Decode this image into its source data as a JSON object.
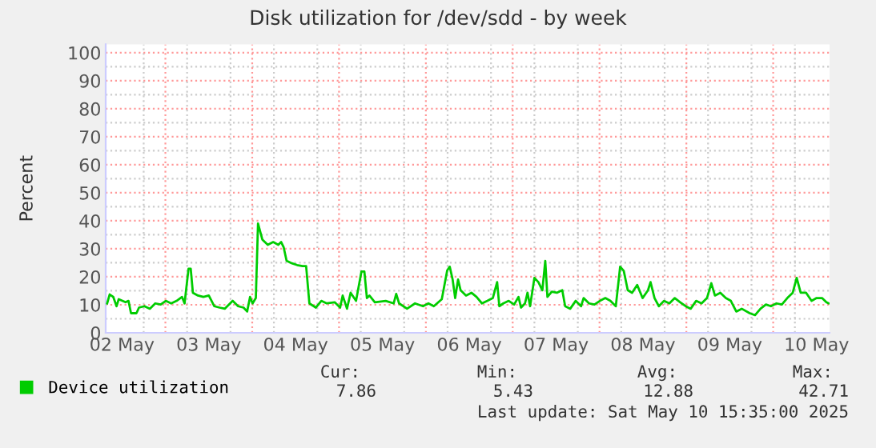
{
  "chart_data": {
    "type": "line",
    "title": "Disk utilization for /dev/sdd - by week",
    "ylabel": "Percent",
    "x": [
      "2025-05-02T07:54",
      "2025-05-02T08:36",
      "2025-05-02T09:36",
      "2025-05-02T10:30",
      "2025-05-02T11:06",
      "2025-05-02T13:00",
      "2025-05-02T13:48",
      "2025-05-02T14:30",
      "2025-05-02T16:00",
      "2025-05-02T16:42",
      "2025-05-02T18:12",
      "2025-05-02T19:42",
      "2025-05-02T21:12",
      "2025-05-02T22:42",
      "2025-05-03T00:06",
      "2025-05-03T01:36",
      "2025-05-03T03:06",
      "2025-05-03T04:36",
      "2025-05-03T05:18",
      "2025-05-03T06:24",
      "2025-05-03T07:00",
      "2025-05-03T07:36",
      "2025-05-03T09:00",
      "2025-05-03T10:30",
      "2025-05-03T12:00",
      "2025-05-03T13:30",
      "2025-05-03T15:00",
      "2025-05-03T16:24",
      "2025-05-03T18:36",
      "2025-05-03T20:06",
      "2025-05-03T21:36",
      "2025-05-03T22:36",
      "2025-05-03T23:24",
      "2025-05-04T00:06",
      "2025-05-04T01:00",
      "2025-05-04T01:36",
      "2025-05-04T02:48",
      "2025-05-04T04:18",
      "2025-05-04T05:48",
      "2025-05-04T07:12",
      "2025-05-04T08:00",
      "2025-05-04T08:42",
      "2025-05-04T09:30",
      "2025-05-04T11:00",
      "2025-05-04T12:24",
      "2025-05-04T13:54",
      "2025-05-04T14:54",
      "2025-05-04T15:48",
      "2025-05-04T17:36",
      "2025-05-04T19:06",
      "2025-05-04T20:36",
      "2025-05-04T22:48",
      "2025-05-05T00:18",
      "2025-05-05T01:00",
      "2025-05-05T02:12",
      "2025-05-05T03:12",
      "2025-05-05T04:42",
      "2025-05-05T06:12",
      "2025-05-05T07:00",
      "2025-05-05T07:42",
      "2025-05-05T08:24",
      "2025-05-05T09:54",
      "2025-05-05T12:54",
      "2025-05-05T15:06",
      "2025-05-05T15:48",
      "2025-05-05T16:36",
      "2025-05-05T18:48",
      "2025-05-05T21:00",
      "2025-05-05T23:12",
      "2025-05-06T00:42",
      "2025-05-06T02:12",
      "2025-05-06T04:24",
      "2025-05-06T05:54",
      "2025-05-06T06:36",
      "2025-05-06T07:24",
      "2025-05-06T08:06",
      "2025-05-06T08:54",
      "2025-05-06T09:36",
      "2025-05-06T11:06",
      "2025-05-06T12:36",
      "2025-05-06T14:00",
      "2025-05-06T15:30",
      "2025-05-06T17:00",
      "2025-05-06T18:30",
      "2025-05-06T19:42",
      "2025-05-06T20:18",
      "2025-05-06T21:24",
      "2025-05-06T22:54",
      "2025-05-07T00:24",
      "2025-05-07T01:36",
      "2025-05-07T02:18",
      "2025-05-07T03:24",
      "2025-05-07T04:06",
      "2025-05-07T04:48",
      "2025-05-07T06:00",
      "2025-05-07T07:06",
      "2025-05-07T08:12",
      "2025-05-07T09:00",
      "2025-05-07T09:36",
      "2025-05-07T10:48",
      "2025-05-07T12:12",
      "2025-05-07T13:42",
      "2025-05-07T14:30",
      "2025-05-07T15:54",
      "2025-05-07T17:24",
      "2025-05-07T18:54",
      "2025-05-07T19:36",
      "2025-05-07T21:06",
      "2025-05-07T22:36",
      "2025-05-08T00:06",
      "2025-05-08T01:36",
      "2025-05-08T03:00",
      "2025-05-08T04:30",
      "2025-05-08T05:42",
      "2025-05-08T06:42",
      "2025-05-08T07:48",
      "2025-05-08T09:00",
      "2025-05-08T10:24",
      "2025-05-08T11:54",
      "2025-05-08T13:24",
      "2025-05-08T14:06",
      "2025-05-08T15:12",
      "2025-05-08T16:24",
      "2025-05-08T17:48",
      "2025-05-08T19:18",
      "2025-05-08T20:48",
      "2025-05-08T22:18",
      "2025-05-08T23:48",
      "2025-05-09T01:12",
      "2025-05-09T02:42",
      "2025-05-09T04:12",
      "2025-05-09T05:42",
      "2025-05-09T06:54",
      "2025-05-09T07:54",
      "2025-05-09T09:24",
      "2025-05-09T10:54",
      "2025-05-09T12:18",
      "2025-05-09T13:48",
      "2025-05-09T15:18",
      "2025-05-09T17:30",
      "2025-05-09T19:00",
      "2025-05-09T20:30",
      "2025-05-09T22:00",
      "2025-05-09T23:24",
      "2025-05-10T00:54",
      "2025-05-10T02:24",
      "2025-05-10T03:54",
      "2025-05-10T05:24",
      "2025-05-10T06:30",
      "2025-05-10T07:36",
      "2025-05-10T09:06",
      "2025-05-10T10:36",
      "2025-05-10T12:00",
      "2025-05-10T13:30",
      "2025-05-10T14:42",
      "2025-05-10T15:18"
    ],
    "series": [
      {
        "name": "Device utilization",
        "color": "#00cc00",
        "values": [
          10.5,
          13.7,
          12.8,
          9.5,
          12.0,
          10.9,
          11.4,
          7.0,
          7.0,
          9.0,
          9.5,
          8.6,
          10.5,
          10.1,
          11.4,
          10.5,
          11.4,
          12.8,
          10.5,
          22.9,
          22.9,
          14.3,
          13.3,
          12.8,
          13.3,
          9.5,
          9.0,
          8.6,
          11.4,
          9.5,
          9.0,
          7.6,
          12.8,
          10.5,
          12.4,
          39.0,
          33.3,
          31.4,
          32.4,
          31.4,
          32.4,
          30.5,
          25.7,
          24.8,
          24.2,
          23.8,
          23.8,
          10.5,
          9.0,
          11.4,
          10.5,
          10.9,
          9.0,
          13.3,
          8.6,
          14.3,
          11.4,
          21.9,
          21.9,
          12.4,
          13.3,
          10.9,
          11.4,
          10.5,
          13.9,
          10.5,
          8.6,
          10.5,
          9.5,
          10.5,
          9.5,
          12.0,
          22.3,
          23.6,
          19.0,
          12.4,
          19.0,
          15.2,
          13.3,
          14.3,
          12.8,
          10.5,
          11.4,
          12.4,
          18.1,
          9.5,
          10.5,
          11.4,
          10.1,
          12.8,
          9.0,
          10.5,
          14.3,
          9.5,
          19.6,
          18.1,
          15.2,
          25.7,
          12.8,
          14.7,
          14.3,
          15.2,
          9.5,
          8.6,
          11.4,
          9.5,
          12.4,
          10.5,
          10.1,
          11.4,
          12.4,
          11.4,
          9.5,
          23.6,
          22.1,
          15.2,
          14.3,
          17.1,
          12.4,
          15.2,
          18.1,
          12.4,
          9.5,
          11.4,
          10.5,
          12.4,
          10.9,
          9.5,
          8.6,
          11.4,
          10.5,
          12.4,
          17.7,
          13.3,
          14.3,
          12.4,
          11.4,
          7.6,
          8.6,
          7.0,
          6.3,
          8.6,
          10.1,
          9.5,
          10.5,
          10.1,
          12.4,
          14.3,
          19.6,
          14.3,
          14.3,
          11.4,
          12.4,
          12.4,
          10.9,
          10.5
        ]
      }
    ],
    "xlim": [
      "2025-05-02T07:30",
      "2025-05-10T15:35"
    ],
    "xticks": [
      {
        "value": "2025-05-02T12:00",
        "label": "02 May"
      },
      {
        "value": "2025-05-03T00:00",
        "label": null
      },
      {
        "value": "2025-05-03T12:00",
        "label": "03 May"
      },
      {
        "value": "2025-05-04T00:00",
        "label": null
      },
      {
        "value": "2025-05-04T12:00",
        "label": "04 May"
      },
      {
        "value": "2025-05-05T00:00",
        "label": null
      },
      {
        "value": "2025-05-05T12:00",
        "label": "05 May"
      },
      {
        "value": "2025-05-06T00:00",
        "label": null
      },
      {
        "value": "2025-05-06T12:00",
        "label": "06 May"
      },
      {
        "value": "2025-05-07T00:00",
        "label": null
      },
      {
        "value": "2025-05-07T12:00",
        "label": "07 May"
      },
      {
        "value": "2025-05-08T00:00",
        "label": null
      },
      {
        "value": "2025-05-08T12:00",
        "label": "08 May"
      },
      {
        "value": "2025-05-09T00:00",
        "label": null
      },
      {
        "value": "2025-05-09T12:00",
        "label": "09 May"
      },
      {
        "value": "2025-05-10T00:00",
        "label": null
      },
      {
        "value": "2025-05-10T12:00",
        "label": "10 May"
      }
    ],
    "ylim": [
      0,
      103
    ],
    "yticks": [
      0,
      10,
      20,
      30,
      40,
      50,
      60,
      70,
      80,
      90,
      100
    ],
    "grid": true,
    "legend": "bottom left",
    "marker": "none",
    "line_style": "solid",
    "annotations": [
      "Cur:",
      "Min:",
      "Avg:",
      "Max:",
      "7.86",
      "5.43",
      "12.88",
      "42.71",
      "Last update: Sat May 10 15:35:00 2025"
    ]
  }
}
